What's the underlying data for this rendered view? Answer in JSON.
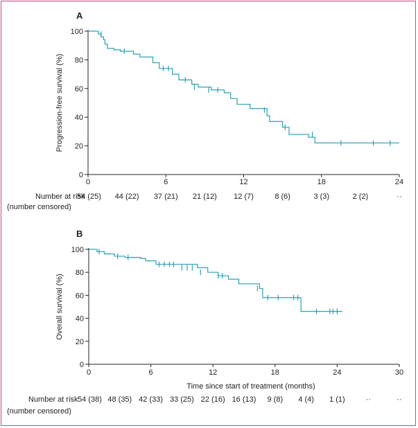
{
  "chart_data": [
    {
      "type": "line",
      "panel_label": "A",
      "ylabel": "Progression-free survival (%)",
      "xlabel": "",
      "xlim": [
        0,
        24
      ],
      "ylim": [
        0,
        100
      ],
      "x_ticks": [
        "0",
        "6",
        "12",
        "18",
        "24"
      ],
      "y_ticks": [
        "0",
        "20",
        "40",
        "60",
        "80",
        "100"
      ],
      "series": [
        {
          "name": "Progression-free survival",
          "x": [
            0,
            0.8,
            1.0,
            1.2,
            1.3,
            1.5,
            2.0,
            2.5,
            3.5,
            4.0,
            5.0,
            5.5,
            6.5,
            7.0,
            8.0,
            8.5,
            9.5,
            10.5,
            11.0,
            11.5,
            12.5,
            13.8,
            14.0,
            15.0,
            15.5,
            17.0,
            17.5,
            24.0
          ],
          "y": [
            100,
            98,
            96,
            94,
            91,
            88,
            87,
            86,
            84,
            82,
            78,
            74,
            70,
            66,
            63,
            61,
            59,
            57,
            53,
            49,
            46,
            41,
            37,
            33,
            28,
            26,
            22,
            22
          ]
        }
      ],
      "censored": [
        {
          "x": 1.0,
          "y": 98
        },
        {
          "x": 2.8,
          "y": 86
        },
        {
          "x": 5.8,
          "y": 74
        },
        {
          "x": 6.2,
          "y": 74
        },
        {
          "x": 7.5,
          "y": 66
        },
        {
          "x": 8.2,
          "y": 61
        },
        {
          "x": 9.3,
          "y": 59
        },
        {
          "x": 10.0,
          "y": 59
        },
        {
          "x": 13.6,
          "y": 45
        },
        {
          "x": 15.2,
          "y": 33
        },
        {
          "x": 17.3,
          "y": 28
        },
        {
          "x": 19.5,
          "y": 22
        },
        {
          "x": 22.0,
          "y": 22
        },
        {
          "x": 23.3,
          "y": 22
        }
      ],
      "risk_table": {
        "label_line1": "Number at risk",
        "label_line2": "(number censored)",
        "values": [
          "54 (25)",
          "44 (22)",
          "37 (21)",
          "21 (12)",
          "12 (7)",
          "8 (6)",
          "3 (3)",
          "2 (2)",
          "··"
        ],
        "x": [
          0,
          3,
          6,
          9,
          12,
          15,
          18,
          21,
          24
        ]
      }
    },
    {
      "type": "line",
      "panel_label": "B",
      "ylabel": "Overall survival (%)",
      "xlabel": "Time since start of treatment (months)",
      "xlim": [
        0,
        30
      ],
      "ylim": [
        0,
        100
      ],
      "x_ticks": [
        "0",
        "6",
        "12",
        "18",
        "24",
        "30"
      ],
      "y_ticks": [
        "0",
        "20",
        "40",
        "60",
        "80",
        "100"
      ],
      "series": [
        {
          "name": "Overall survival",
          "x": [
            0,
            0.8,
            1.5,
            2.5,
            3.5,
            5.0,
            5.5,
            6.5,
            8.5,
            10.5,
            11.5,
            12.5,
            13.5,
            14.5,
            16.5,
            16.8,
            19.5,
            20.5,
            24.5
          ],
          "y": [
            100,
            98,
            96,
            94,
            93,
            92,
            90,
            87,
            87,
            84,
            80,
            77,
            74,
            70,
            66,
            58,
            58,
            46,
            46
          ]
        }
      ],
      "censored": [
        {
          "x": 1.0,
          "y": 98
        },
        {
          "x": 2.8,
          "y": 94
        },
        {
          "x": 3.8,
          "y": 93
        },
        {
          "x": 6.8,
          "y": 87
        },
        {
          "x": 7.3,
          "y": 87
        },
        {
          "x": 7.8,
          "y": 87
        },
        {
          "x": 8.2,
          "y": 87
        },
        {
          "x": 9.0,
          "y": 84
        },
        {
          "x": 9.5,
          "y": 84
        },
        {
          "x": 10.0,
          "y": 84
        },
        {
          "x": 10.8,
          "y": 80
        },
        {
          "x": 12.5,
          "y": 77
        },
        {
          "x": 12.9,
          "y": 77
        },
        {
          "x": 16.3,
          "y": 66
        },
        {
          "x": 17.3,
          "y": 58
        },
        {
          "x": 18.3,
          "y": 58
        },
        {
          "x": 19.8,
          "y": 58
        },
        {
          "x": 20.2,
          "y": 58
        },
        {
          "x": 22.0,
          "y": 46
        },
        {
          "x": 23.3,
          "y": 46
        },
        {
          "x": 23.6,
          "y": 46
        },
        {
          "x": 24.0,
          "y": 46
        }
      ],
      "risk_table": {
        "label_line1": "Number at risk",
        "label_line2": "(number censored)",
        "values": [
          "54 (38)",
          "48 (35)",
          "42 (33)",
          "33 (25)",
          "22 (16)",
          "16 (13)",
          "9 (8)",
          "4 (4)",
          "1 (1)",
          "··",
          "··"
        ],
        "x": [
          0,
          3,
          6,
          9,
          12,
          15,
          18,
          21,
          24,
          27,
          30
        ]
      }
    }
  ]
}
